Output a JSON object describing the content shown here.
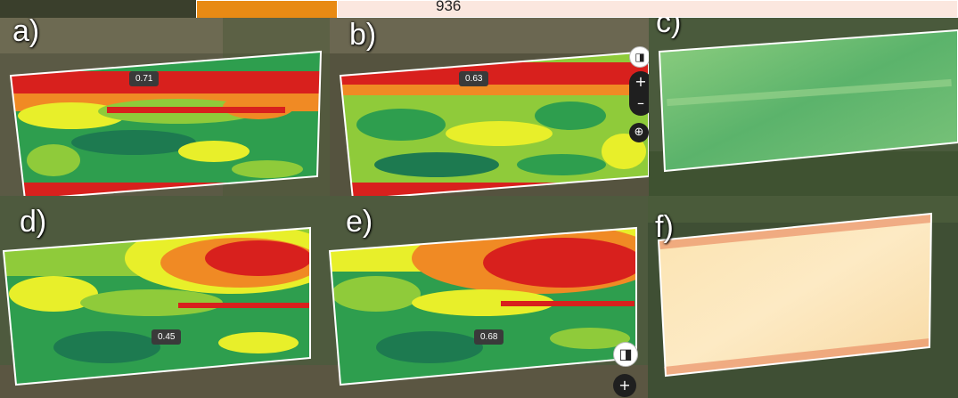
{
  "top_table": {
    "value": "936"
  },
  "panels": [
    {
      "id": "a",
      "label": "a)",
      "value": "0.71",
      "style": "ndvi-red-green"
    },
    {
      "id": "b",
      "label": "b)",
      "value": "0.63",
      "style": "ndvi-red-green"
    },
    {
      "id": "c",
      "label": "c)",
      "value": "",
      "style": "pale-green"
    },
    {
      "id": "d",
      "label": "d)",
      "value": "0.45",
      "style": "ndvi-red-green"
    },
    {
      "id": "e",
      "label": "e)",
      "value": "0.68",
      "style": "ndvi-red-green"
    },
    {
      "id": "f",
      "label": "f)",
      "value": "",
      "style": "pale-yellow"
    }
  ],
  "map_controls": {
    "compare_icon": "split-view-icon",
    "zoom_in": "+",
    "zoom_out": "–",
    "locate_icon": "crosshair-icon"
  },
  "colors": {
    "red": "#d8201d",
    "orange": "#f08a24",
    "yellow": "#e8ef2a",
    "lightgreen": "#8fcb3a",
    "green": "#2e9e4e",
    "darkgreen": "#1d7a50",
    "pale_green": "#7fc47a",
    "pale_yellow": "#fbe6b8"
  }
}
